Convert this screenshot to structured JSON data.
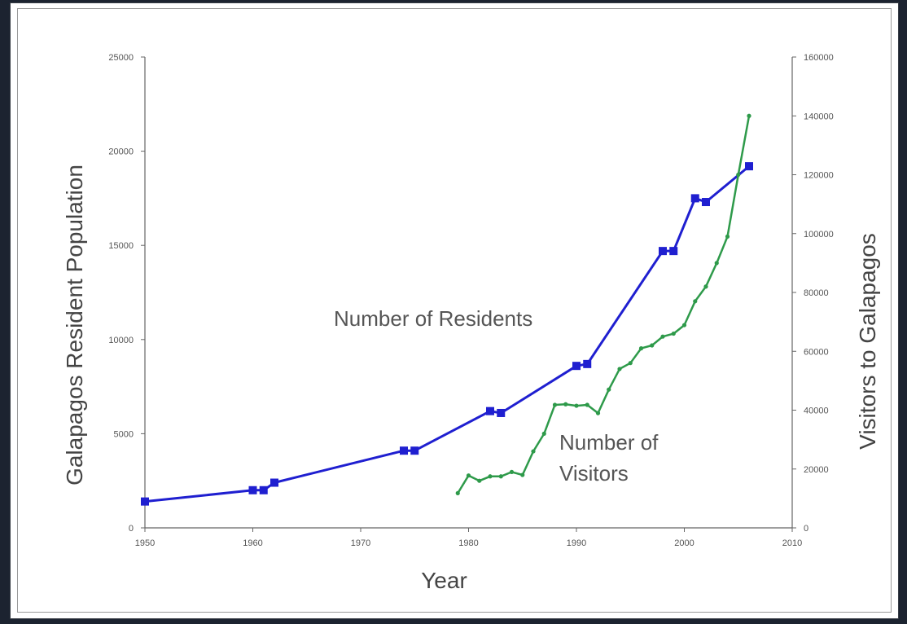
{
  "chart_data": {
    "type": "line",
    "title": "",
    "xlabel": "Year",
    "ylabel_left": "Galapagos Resident Population",
    "ylabel_right": "Visitors to Galapagos",
    "xlim": [
      1950,
      2010
    ],
    "x_ticks": [
      1950,
      1960,
      1970,
      1980,
      1990,
      2000,
      2010
    ],
    "ylim_left": [
      0,
      25000
    ],
    "y_ticks_left": [
      0,
      5000,
      10000,
      15000,
      20000,
      25000
    ],
    "ylim_right": [
      0,
      160000
    ],
    "y_ticks_right": [
      0,
      20000,
      40000,
      60000,
      80000,
      100000,
      120000,
      140000,
      160000
    ],
    "grid": false,
    "series": [
      {
        "name": "Number of Residents",
        "axis": "left",
        "color": "#1f1fd0",
        "marker": "square",
        "points": [
          [
            1950,
            1400
          ],
          [
            1960,
            2000
          ],
          [
            1961,
            2000
          ],
          [
            1962,
            2400
          ],
          [
            1974,
            4100
          ],
          [
            1975,
            4100
          ],
          [
            1982,
            6200
          ],
          [
            1983,
            6100
          ],
          [
            1990,
            8600
          ],
          [
            1991,
            8700
          ],
          [
            1998,
            14700
          ],
          [
            1999,
            14700
          ],
          [
            2001,
            17500
          ],
          [
            2002,
            17300
          ],
          [
            2006,
            19200
          ]
        ]
      },
      {
        "name": "Number of Visitors",
        "axis": "right",
        "color": "#2e9a4a",
        "marker": "dot",
        "points": [
          [
            1979,
            11800
          ],
          [
            1980,
            17800
          ],
          [
            1981,
            16000
          ],
          [
            1982,
            17500
          ],
          [
            1983,
            17500
          ],
          [
            1984,
            19000
          ],
          [
            1985,
            18000
          ],
          [
            1986,
            26000
          ],
          [
            1987,
            32000
          ],
          [
            1988,
            41800
          ],
          [
            1989,
            42000
          ],
          [
            1990,
            41500
          ],
          [
            1991,
            41800
          ],
          [
            1992,
            39000
          ],
          [
            1993,
            47000
          ],
          [
            1994,
            54000
          ],
          [
            1995,
            56000
          ],
          [
            1996,
            61000
          ],
          [
            1997,
            62000
          ],
          [
            1998,
            65000
          ],
          [
            1999,
            66000
          ],
          [
            2000,
            68900
          ],
          [
            2001,
            77000
          ],
          [
            2002,
            82000
          ],
          [
            2003,
            90000
          ],
          [
            2004,
            99000
          ],
          [
            2005,
            120000
          ],
          [
            2006,
            140000
          ]
        ]
      }
    ],
    "annotations": [
      {
        "text": "Number of Residents",
        "series": "Number of Residents"
      },
      {
        "text": "Number of",
        "series": "Number of Visitors"
      },
      {
        "text": "Visitors",
        "series": "Number of Visitors"
      }
    ]
  }
}
